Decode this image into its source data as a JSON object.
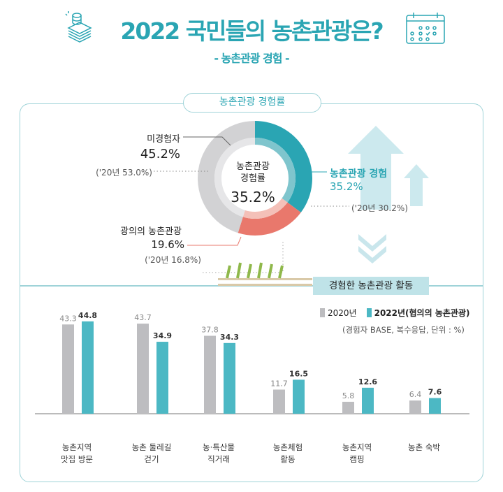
{
  "header": {
    "title": "2022 국민들의 농촌관광은?",
    "subtitle": "- 농촌관광 경험 -"
  },
  "icons": {
    "left": "money-coins-icon",
    "right": "calendar-icon"
  },
  "colors": {
    "teal": "#2aa5b3",
    "salmon": "#e9786c",
    "gray": "#d2d2d4",
    "bar_gray": "#bdbdc0",
    "bar_teal": "#4cb8c4"
  },
  "chart_data": [
    {
      "type": "pie",
      "title": "농촌관광 경험률",
      "center_label": "농촌관광\n경험률",
      "center_value": "35.2%",
      "slices": [
        {
          "name": "농촌관광 경험",
          "value": 35.2,
          "label": "35.2%",
          "prev": "('20년 30.2%)"
        },
        {
          "name": "광의의 농촌관광",
          "value": 19.6,
          "label": "19.6%",
          "prev": "('20년 16.8%)"
        },
        {
          "name": "미경험자",
          "value": 45.2,
          "label": "45.2%",
          "prev": "('20년 53.0%)"
        }
      ]
    },
    {
      "type": "bar",
      "title": "경험한 농촌관광 활동",
      "note": "(경험자 BASE, 복수응답, 단위 : %)",
      "categories": [
        "농촌지역\n맛집 방문",
        "농촌 둘레길\n걷기",
        "농·특산물\n직거래",
        "농촌체험\n활동",
        "농촌지역\n캠핑",
        "농촌 숙박"
      ],
      "series": [
        {
          "name": "2020년",
          "values": [
            43.3,
            43.7,
            37.8,
            11.7,
            5.8,
            6.4
          ]
        },
        {
          "name": "2022년(협의의 농촌관광)",
          "values": [
            44.8,
            34.9,
            34.3,
            16.5,
            12.6,
            7.6
          ]
        }
      ]
    }
  ]
}
